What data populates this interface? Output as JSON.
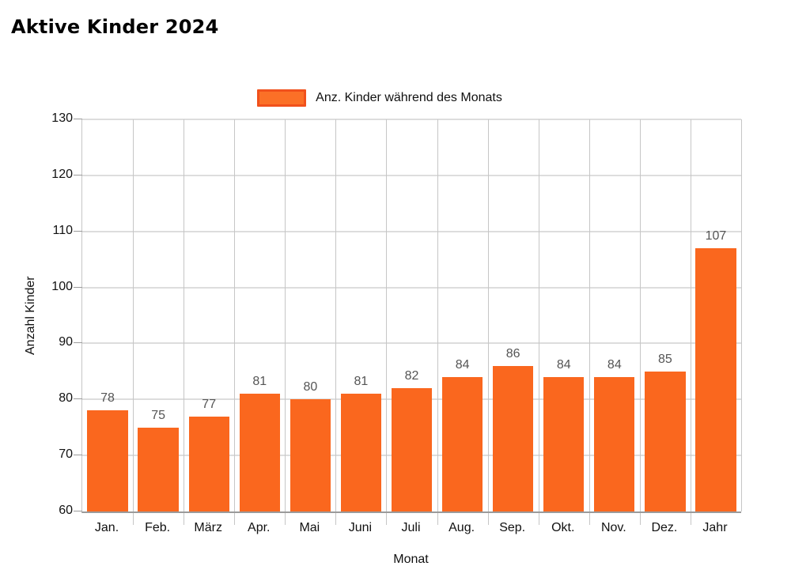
{
  "page": {
    "title": "Aktive Kinder 2024"
  },
  "legend": {
    "label": "Anz. Kinder während des Monats",
    "swatch_fill": "#fb7027",
    "swatch_border": "#f1511c"
  },
  "chart_data": {
    "type": "bar",
    "title": "Aktive Kinder 2024",
    "categories": [
      "Jan.",
      "Feb.",
      "März",
      "Apr.",
      "Mai",
      "Juni",
      "Juli",
      "Aug.",
      "Sep.",
      "Okt.",
      "Nov.",
      "Dez.",
      "Jahr"
    ],
    "values": [
      78,
      75,
      77,
      81,
      80,
      81,
      82,
      84,
      86,
      84,
      84,
      85,
      107
    ],
    "series_name": "Anz. Kinder während des Monats",
    "xlabel": "Monat",
    "ylabel": "Anzahl Kinder",
    "ylim": [
      60,
      130
    ],
    "yticks": [
      60,
      70,
      80,
      90,
      100,
      110,
      120,
      130
    ],
    "grid": true,
    "legend_position": "top",
    "bar_color": "#fa671e",
    "value_label_color": "#555555"
  }
}
